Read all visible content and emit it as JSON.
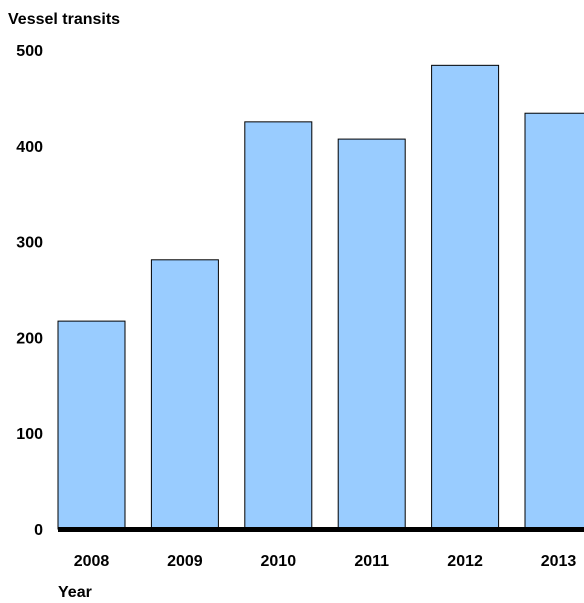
{
  "chart_data": {
    "type": "bar",
    "ylabel": "Vessel transits",
    "xlabel": "Year",
    "categories": [
      "2008",
      "2009",
      "2010",
      "2011",
      "2012",
      "2013"
    ],
    "values": [
      217,
      281,
      425,
      407,
      484,
      434
    ],
    "ylim": [
      0,
      500
    ],
    "yticks": [
      0,
      100,
      200,
      300,
      400,
      500
    ],
    "grid": false,
    "legend": "none",
    "colors": {
      "bar_fill": "#99ccff",
      "bar_stroke": "#000000",
      "axis": "#000000",
      "text": "#000000"
    }
  }
}
